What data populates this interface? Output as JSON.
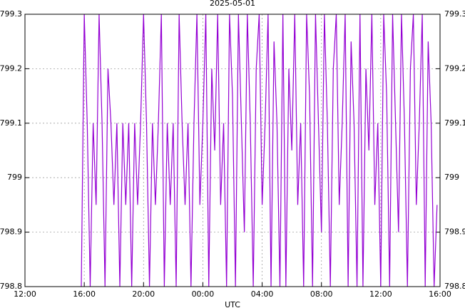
{
  "chart_data": {
    "type": "line",
    "title": "2025-05-01",
    "x_label": "UTC",
    "x": [
      3.8,
      4,
      4.2,
      4.4,
      4.6,
      4.8,
      5,
      5.2,
      5.4,
      5.6,
      5.8,
      6,
      6.2,
      6.4,
      6.6,
      6.8,
      7,
      7.2,
      7.4,
      7.6,
      7.8,
      8,
      8.2,
      8.4,
      8.6,
      8.8,
      9,
      9.2,
      9.4,
      9.6,
      9.8,
      10,
      10.2,
      10.4,
      10.6,
      10.8,
      11,
      11.2,
      11.4,
      11.6,
      11.8,
      12,
      12.2,
      12.4,
      12.6,
      12.8,
      13,
      13.2,
      13.4,
      13.6,
      13.8,
      14,
      14.2,
      14.4,
      14.6,
      14.8,
      15,
      15.2,
      15.4,
      15.6,
      15.8,
      16,
      16.2,
      16.4,
      16.6,
      16.8,
      17,
      17.2,
      17.4,
      17.6,
      17.8,
      18,
      18.2,
      18.4,
      18.6,
      18.8,
      19,
      19.2,
      19.4,
      19.6,
      19.8,
      20,
      20.2,
      20.4,
      20.6,
      20.8,
      21,
      21.2,
      21.4,
      21.6,
      21.8,
      22,
      22.2,
      22.4,
      22.6,
      22.8,
      23,
      23.2,
      23.4,
      23.6,
      23.8,
      24,
      24.2,
      24.4,
      24.6,
      24.8,
      25,
      25.2,
      25.4,
      25.6,
      25.8,
      26,
      26.2,
      26.4,
      26.6,
      26.8,
      27,
      27.2,
      27.4,
      27.6,
      27.8
    ],
    "series": [
      {
        "color": "#9400d3",
        "values": [
          798.8,
          799.3,
          799.1,
          798.8,
          799.1,
          798.95,
          799.3,
          799.1,
          798.8,
          799.2,
          799.1,
          798.95,
          799.1,
          798.8,
          799.1,
          798.95,
          799.1,
          798.8,
          799.1,
          798.95,
          799.1,
          799.3,
          799.1,
          798.8,
          799.1,
          798.95,
          799.1,
          799.3,
          798.8,
          799.1,
          798.95,
          799.1,
          798.8,
          799.3,
          799.1,
          798.95,
          799.1,
          798.8,
          799.1,
          799.3,
          798.95,
          799.1,
          799.3,
          798.8,
          799.2,
          799.05,
          799.3,
          798.95,
          799.1,
          798.8,
          799.3,
          799.15,
          798.8,
          799.3,
          799.1,
          798.9,
          799.3,
          799.1,
          798.8,
          799.2,
          799.3,
          798.95,
          799.1,
          799.3,
          798.8,
          799.25,
          799.1,
          798.8,
          799.3,
          798.8,
          799.2,
          799.05,
          799.3,
          798.95,
          799.1,
          798.8,
          799.3,
          799.15,
          798.8,
          799.3,
          799.1,
          798.9,
          799.3,
          799.1,
          798.8,
          799.2,
          799.3,
          798.95,
          799.1,
          799.3,
          798.8,
          799.25,
          799.1,
          798.8,
          799.3,
          798.8,
          799.2,
          799.05,
          799.3,
          798.95,
          799.1,
          798.8,
          799.3,
          799.15,
          798.8,
          799.3,
          799.1,
          798.9,
          799.3,
          799.1,
          798.8,
          799.2,
          799.3,
          798.95,
          799.1,
          799.3,
          798.8,
          799.25,
          799.1,
          798.8,
          798.95
        ]
      }
    ],
    "xlim": [
      0,
      28
    ],
    "xticks": [
      {
        "value": 0,
        "label": "12:00"
      },
      {
        "value": 4,
        "label": "16:00"
      },
      {
        "value": 8,
        "label": "20:00"
      },
      {
        "value": 12,
        "label": "00:00"
      },
      {
        "value": 16,
        "label": "04:00"
      },
      {
        "value": 20,
        "label": "08:00"
      },
      {
        "value": 24,
        "label": "12:00"
      },
      {
        "value": 28,
        "label": "16:00"
      }
    ],
    "ylim": [
      798.8,
      799.3
    ],
    "yticks": [
      798.8,
      798.9,
      799,
      799.1,
      799.2,
      799.3
    ],
    "grid": true
  }
}
